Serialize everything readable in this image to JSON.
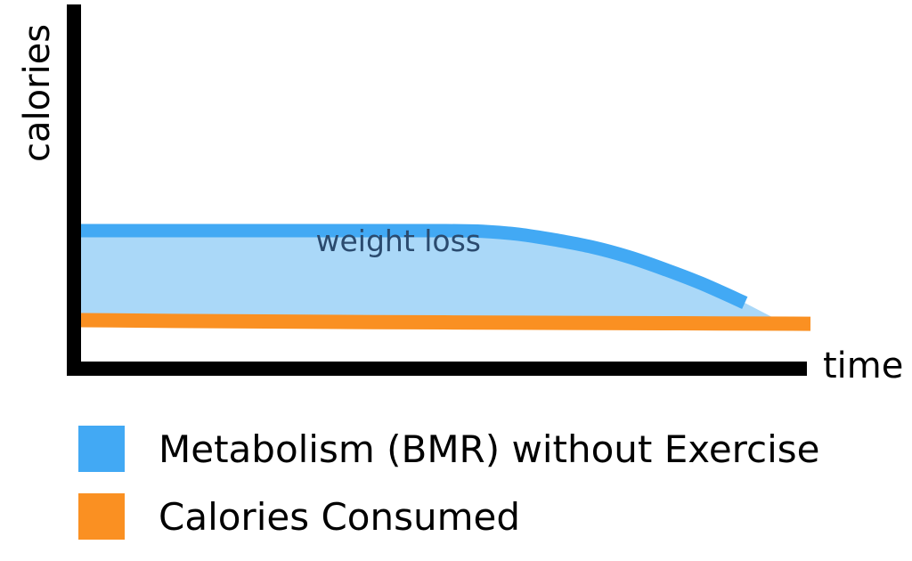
{
  "chart_data": {
    "type": "area",
    "title": "",
    "xlabel": "time",
    "ylabel": "calories",
    "xlim": [
      0,
      10
    ],
    "ylim": [
      0,
      10
    ],
    "grid": false,
    "legend_placement": "bottom",
    "annotation": "weight loss",
    "series": [
      {
        "name": "Metabolism (BMR) without Exercise",
        "color": "#42a9f4",
        "x": [
          0,
          1,
          2,
          3,
          4,
          5,
          5.5,
          6,
          6.5,
          7,
          7.5,
          8,
          8.5,
          9.1
        ],
        "values": [
          4.68,
          4.68,
          4.68,
          4.68,
          4.68,
          4.68,
          4.66,
          4.55,
          4.35,
          4.1,
          3.75,
          3.3,
          2.8,
          2.1
        ]
      },
      {
        "name": "Calories Consumed",
        "color": "#fa9022",
        "x": [
          0,
          2,
          4,
          6,
          8,
          10
        ],
        "values": [
          1.48,
          1.44,
          1.41,
          1.39,
          1.37,
          1.35
        ]
      }
    ],
    "fill": {
      "between": [
        "Metabolism (BMR) without Exercise",
        "Calories Consumed"
      ],
      "color": "#aad8f8",
      "label_color": "#2b4b6f"
    }
  }
}
